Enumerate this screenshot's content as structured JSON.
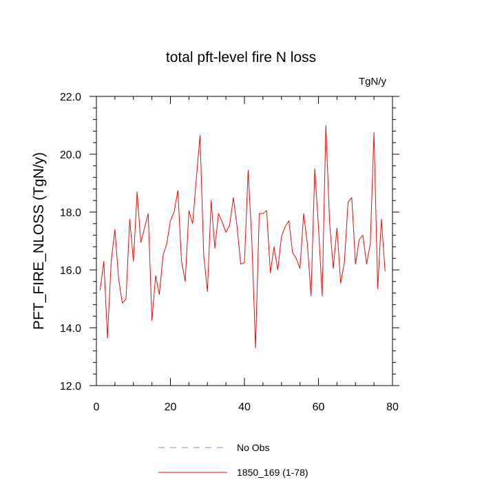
{
  "chart_data": {
    "type": "line",
    "title": "total pft-level fire N loss",
    "units_label": "TgN/y",
    "xlabel": "",
    "ylabel": "PFT_FIRE_NLOSS  (TgN/y)",
    "xlim": [
      0,
      80
    ],
    "ylim": [
      12.0,
      22.0
    ],
    "x_major_ticks": [
      0,
      20,
      40,
      60,
      80
    ],
    "x_tick_labels": [
      "0",
      "20",
      "40",
      "60",
      "80"
    ],
    "y_major_ticks": [
      12.0,
      14.0,
      16.0,
      18.0,
      20.0,
      22.0
    ],
    "y_tick_labels": [
      "12.0",
      "14.0",
      "16.0",
      "18.0",
      "20.0",
      "22.0"
    ],
    "grid": false,
    "legend_position": "bottom-center",
    "series": [
      {
        "name": "No Obs",
        "style": "dashed",
        "color": "#8080ff",
        "x": [],
        "values": []
      },
      {
        "name": "1850_169 (1-78)",
        "style": "solid",
        "color": "#ff0000",
        "x": [
          1,
          2,
          3,
          4,
          5,
          6,
          7,
          8,
          9,
          10,
          11,
          12,
          13,
          14,
          15,
          16,
          17,
          18,
          19,
          20,
          21,
          22,
          23,
          24,
          25,
          26,
          27,
          28,
          29,
          30,
          31,
          32,
          33,
          34,
          35,
          36,
          37,
          38,
          39,
          40,
          41,
          42,
          43,
          44,
          45,
          46,
          47,
          48,
          49,
          50,
          51,
          52,
          53,
          54,
          55,
          56,
          57,
          58,
          59,
          60,
          61,
          62,
          63,
          64,
          65,
          66,
          67,
          68,
          69,
          70,
          71,
          72,
          73,
          74,
          75,
          76,
          77,
          78
        ],
        "values": [
          15.3,
          16.3,
          13.65,
          16.3,
          17.4,
          15.7,
          14.85,
          15.0,
          17.75,
          16.3,
          18.7,
          16.95,
          17.45,
          17.95,
          14.25,
          15.8,
          15.15,
          16.5,
          16.9,
          17.7,
          18.0,
          18.75,
          16.3,
          15.6,
          18.05,
          17.6,
          19.15,
          20.65,
          16.5,
          15.25,
          18.4,
          16.75,
          17.95,
          17.65,
          17.3,
          17.55,
          18.5,
          17.5,
          16.2,
          16.25,
          19.45,
          17.0,
          13.3,
          17.95,
          17.95,
          18.05,
          15.9,
          16.8,
          16.0,
          17.15,
          17.5,
          17.7,
          16.6,
          16.4,
          16.05,
          17.95,
          16.9,
          15.1,
          19.5,
          17.5,
          15.1,
          21.0,
          17.65,
          16.05,
          17.45,
          15.55,
          16.25,
          18.35,
          18.5,
          16.2,
          17.05,
          17.2,
          16.2,
          16.9,
          20.75,
          15.35,
          17.75,
          15.95
        ]
      }
    ]
  }
}
